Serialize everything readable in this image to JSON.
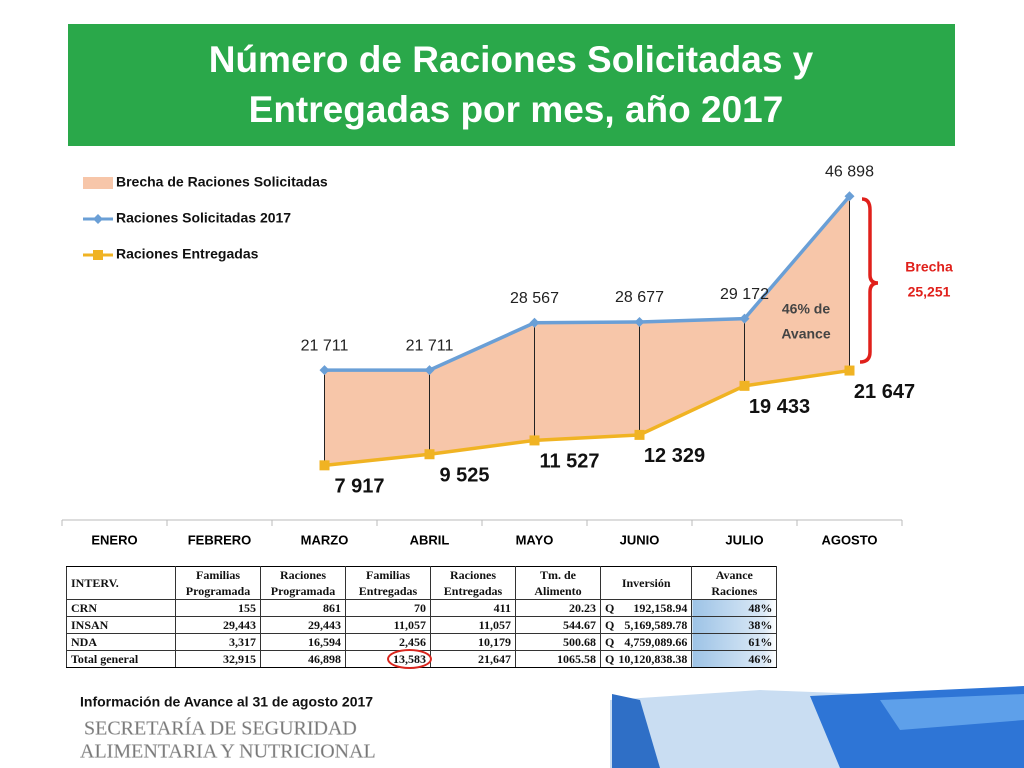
{
  "chart_data": {
    "type": "area-line",
    "title": [
      "Número de Raciones Solicitadas y",
      "Entregadas por mes, año 2017"
    ],
    "categories": [
      "ENERO",
      "FEBRERO",
      "MARZO",
      "ABRIL",
      "MAYO",
      "JUNIO",
      "JULIO",
      "AGOSTO"
    ],
    "series": [
      {
        "name": "Brecha de Raciones Solicitadas",
        "color": "#f7c6a9",
        "kind": "stacked-area",
        "values": [
          null,
          null,
          13794,
          12186,
          17040,
          16348,
          9739,
          25251
        ]
      },
      {
        "name": "Raciones Solicitadas 2017",
        "color": "#6a9fd6",
        "kind": "line",
        "values": [
          null,
          null,
          21711,
          21711,
          28567,
          28677,
          29172,
          46898
        ],
        "value_labels": [
          null,
          null,
          "21 711",
          "21 711",
          "28 567",
          "28 677",
          "29 172",
          "46 898"
        ]
      },
      {
        "name": "Raciones Entregadas",
        "color": "#f0b323",
        "kind": "line",
        "values": [
          null,
          null,
          7917,
          9525,
          11527,
          12329,
          19433,
          21647
        ],
        "value_labels": [
          null,
          null,
          "7 917",
          "9 525",
          "11 527",
          "12 329",
          "19 433",
          "21 647"
        ]
      }
    ],
    "ylim": [
      0,
      52000
    ],
    "legend": "upper left",
    "annotations": [
      {
        "lines": [
          "46% de",
          "Avance"
        ]
      },
      {
        "lines": [
          "Brecha",
          "25,251"
        ]
      }
    ]
  },
  "table": {
    "header_top": [
      "INTERV.",
      "Familias",
      "Raciones",
      "Familias",
      "Raciones",
      "Tm. de",
      "Inversión",
      "Avance"
    ],
    "header_bottom": [
      "Programada",
      "Programada",
      "Entregadas",
      "Entregadas",
      "Alimento",
      "Raciones"
    ],
    "rows": [
      [
        "CRN",
        "155",
        "861",
        "70",
        "411",
        "20.23",
        "Q",
        "192,158.94",
        "48%"
      ],
      [
        "INSAN",
        "29,443",
        "29,443",
        "11,057",
        "11,057",
        "544.67",
        "Q",
        "5,169,589.78",
        "38%"
      ],
      [
        "NDA",
        "3,317",
        "16,594",
        "2,456",
        "10,179",
        "500.68",
        "Q",
        "4,759,089.66",
        "61%"
      ],
      [
        "Total general",
        "32,915",
        "46,898",
        "13,583",
        "21,647",
        "1065.58",
        "Q",
        "10,120,838.38",
        "46%"
      ]
    ]
  },
  "footer": {
    "note": "Información de Avance al 31 de agosto 2017",
    "logo": [
      "SECRETARÍA DE SEGURIDAD",
      "ALIMENTARIA Y NUTRICIONAL"
    ]
  }
}
